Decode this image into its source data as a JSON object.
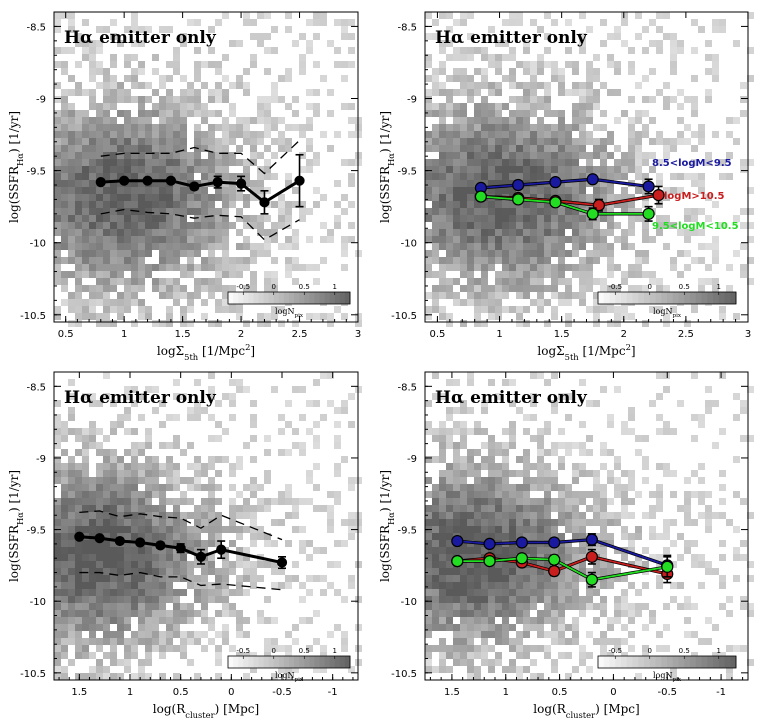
{
  "chart_data": [
    {
      "type": "scatter",
      "panel": "top-left",
      "title": "Hα emitter only",
      "xlabel_parts": [
        "logΣ",
        "5th",
        " [1/Mpc",
        "2",
        "]"
      ],
      "ylabel_parts": [
        "log(SSFR",
        "Hα",
        ") [1/yr]"
      ],
      "xlim": [
        0.4,
        3.0
      ],
      "ylim": [
        -10.55,
        -8.4
      ],
      "xticks": [
        "0.5",
        "1",
        "1.5",
        "2",
        "2.5",
        "3"
      ],
      "yticks": [
        "-8.5",
        "-9",
        "-9.5",
        "-10",
        "-10.5"
      ],
      "density": "grayscale 2D histogram of log N_pix",
      "series": [
        {
          "x": [
            0.8,
            1.0,
            1.2,
            1.4,
            1.6,
            1.8,
            2.0,
            2.2,
            2.5
          ],
          "y": [
            -9.58,
            -9.57,
            -9.57,
            -9.57,
            -9.61,
            -9.58,
            -9.59,
            -9.72,
            -9.57
          ],
          "yerr": [
            0.01,
            0.01,
            0.01,
            0.01,
            0.02,
            0.04,
            0.05,
            0.08,
            0.18
          ],
          "color": "#000000"
        }
      ],
      "envelopes": [
        {
          "x": [
            0.8,
            1.0,
            1.2,
            1.4,
            1.6,
            1.8,
            2.0,
            2.2,
            2.5
          ],
          "y": [
            -9.4,
            -9.38,
            -9.38,
            -9.38,
            -9.34,
            -9.38,
            -9.38,
            -9.52,
            -9.29
          ]
        },
        {
          "x": [
            0.8,
            1.0,
            1.2,
            1.4,
            1.6,
            1.8,
            2.0,
            2.2,
            2.5
          ],
          "y": [
            -9.8,
            -9.77,
            -9.79,
            -9.8,
            -9.83,
            -9.81,
            -9.82,
            -9.98,
            -9.84
          ]
        }
      ],
      "colorbar": {
        "ticks": [
          "-0.5",
          "0",
          "0.5",
          "1"
        ],
        "label_parts": [
          "logN",
          "pix"
        ]
      }
    },
    {
      "type": "scatter",
      "panel": "top-right",
      "title": "Hα emitter only",
      "xlabel_parts": [
        "logΣ",
        "5th",
        " [1/Mpc",
        "2",
        "]"
      ],
      "ylabel_parts": [
        "log(SSFR",
        "Hα",
        ") [1/yr]"
      ],
      "xlim": [
        0.4,
        3.0
      ],
      "ylim": [
        -10.55,
        -8.4
      ],
      "xticks": [
        "0.5",
        "1",
        "1.5",
        "2",
        "2.5",
        "3"
      ],
      "yticks": [
        "-8.5",
        "-9",
        "-9.5",
        "-10",
        "-10.5"
      ],
      "density": "grayscale 2D histogram of log N_pix",
      "series": [
        {
          "name": "8.5<logM<9.5",
          "color": "#1a1aa0",
          "x": [
            0.85,
            1.15,
            1.45,
            1.75,
            2.2
          ],
          "y": [
            -9.62,
            -9.6,
            -9.58,
            -9.56,
            -9.61
          ],
          "yerr": [
            0.02,
            0.02,
            0.02,
            0.02,
            0.05
          ]
        },
        {
          "name": "logM>10.5",
          "color": "#c81e1e",
          "x": [
            0.85,
            1.15,
            1.45,
            1.8,
            2.28
          ],
          "y": [
            -9.68,
            -9.69,
            -9.71,
            -9.74,
            -9.67
          ],
          "yerr": [
            0.02,
            0.02,
            0.02,
            0.04,
            0.06
          ]
        },
        {
          "name": "9.5<logM<10.5",
          "color": "#22dd22",
          "x": [
            0.85,
            1.15,
            1.45,
            1.75,
            2.2
          ],
          "y": [
            -9.68,
            -9.7,
            -9.72,
            -9.8,
            -9.8
          ],
          "yerr": [
            0.02,
            0.02,
            0.02,
            0.04,
            0.05
          ]
        }
      ],
      "colorbar": {
        "ticks": [
          "-0.5",
          "0",
          "0.5",
          "1"
        ],
        "label_parts": [
          "logN",
          "pix"
        ]
      }
    },
    {
      "type": "scatter",
      "panel": "bottom-left",
      "title": "Hα emitter only",
      "xlabel_parts": [
        "log(R",
        "cluster",
        ") [Mpc]"
      ],
      "ylabel_parts": [
        "log(SSFR",
        "Hα",
        ") [1/yr]"
      ],
      "xlim": [
        1.75,
        -1.25
      ],
      "ylim": [
        -10.55,
        -8.4
      ],
      "xticks": [
        "1.5",
        "1",
        "0.5",
        "0",
        "-0.5",
        "-1"
      ],
      "yticks": [
        "-8.5",
        "-9",
        "-9.5",
        "-10",
        "-10.5"
      ],
      "density": "grayscale 2D histogram of log N_pix",
      "series": [
        {
          "x": [
            1.5,
            1.3,
            1.1,
            0.9,
            0.7,
            0.5,
            0.3,
            0.1,
            -0.5
          ],
          "y": [
            -9.55,
            -9.56,
            -9.58,
            -9.59,
            -9.61,
            -9.63,
            -9.69,
            -9.64,
            -9.73
          ],
          "yerr": [
            0.01,
            0.01,
            0.01,
            0.01,
            0.02,
            0.03,
            0.05,
            0.06,
            0.04
          ],
          "color": "#000000"
        }
      ],
      "envelopes": [
        {
          "x": [
            1.5,
            1.3,
            1.1,
            0.9,
            0.7,
            0.5,
            0.3,
            0.1,
            -0.5
          ],
          "y": [
            -9.38,
            -9.37,
            -9.41,
            -9.39,
            -9.41,
            -9.42,
            -9.49,
            -9.4,
            -9.57
          ]
        },
        {
          "x": [
            1.5,
            1.3,
            1.1,
            0.9,
            0.7,
            0.5,
            0.3,
            0.1,
            -0.5
          ],
          "y": [
            -9.8,
            -9.8,
            -9.82,
            -9.8,
            -9.83,
            -9.83,
            -9.89,
            -9.88,
            -9.92
          ]
        }
      ],
      "colorbar": {
        "ticks": [
          "-0.5",
          "0",
          "0.5",
          "1"
        ],
        "label_parts": [
          "logN",
          "pix"
        ]
      }
    },
    {
      "type": "scatter",
      "panel": "bottom-right",
      "title": "Hα emitter only",
      "xlabel_parts": [
        "log(R",
        "cluster",
        ") [Mpc]"
      ],
      "ylabel_parts": [
        "log(SSFR",
        "Hα",
        ") [1/yr]"
      ],
      "xlim": [
        1.75,
        -1.25
      ],
      "ylim": [
        -10.55,
        -8.4
      ],
      "xticks": [
        "1.5",
        "1",
        "0.5",
        "0",
        "-0.5",
        "-1"
      ],
      "yticks": [
        "-8.5",
        "-9",
        "-9.5",
        "-10",
        "-10.5"
      ],
      "density": "grayscale 2D histogram of log N_pix",
      "series": [
        {
          "color": "#1a1aa0",
          "x": [
            1.45,
            1.15,
            0.85,
            0.55,
            0.2,
            -0.5
          ],
          "y": [
            -9.58,
            -9.6,
            -9.59,
            -9.59,
            -9.57,
            -9.75
          ],
          "yerr": [
            0.02,
            0.02,
            0.02,
            0.02,
            0.04,
            0.07
          ]
        },
        {
          "color": "#c81e1e",
          "x": [
            1.45,
            1.15,
            0.85,
            0.55,
            0.2,
            -0.5
          ],
          "y": [
            -9.72,
            -9.7,
            -9.73,
            -9.79,
            -9.69,
            -9.81
          ],
          "yerr": [
            0.02,
            0.02,
            0.02,
            0.03,
            0.05,
            0.06
          ]
        },
        {
          "color": "#22dd22",
          "x": [
            1.45,
            1.15,
            0.85,
            0.55,
            0.2,
            -0.5
          ],
          "y": [
            -9.72,
            -9.72,
            -9.7,
            -9.71,
            -9.85,
            -9.76
          ],
          "yerr": [
            0.02,
            0.02,
            0.02,
            0.03,
            0.05,
            0.07
          ]
        }
      ],
      "colorbar": {
        "ticks": [
          "-0.5",
          "0",
          "0.5",
          "1"
        ],
        "label_parts": [
          "logN",
          "pix"
        ]
      }
    }
  ]
}
